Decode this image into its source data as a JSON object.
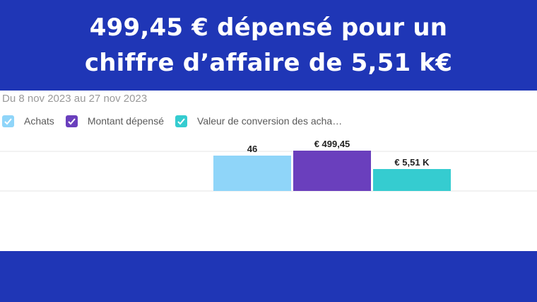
{
  "headline": {
    "line1": "499,45 € dépensé pour un",
    "line2": "chiffre d’affaire de 5,51 k€"
  },
  "date_range": "Du 8 nov 2023 au 27 nov 2023",
  "colors": {
    "banner": "#1f36b6",
    "achats": "#8fd5f9",
    "montant": "#6a3fbd",
    "valeur": "#35ccd0"
  },
  "legend": [
    {
      "label": "Achats",
      "color": "#8fd5f9",
      "icon": "checkbox-checked-icon"
    },
    {
      "label": "Montant dépensé",
      "color": "#6a3fbd",
      "icon": "checkbox-checked-icon"
    },
    {
      "label": "Valeur de conversion des acha…",
      "color": "#35ccd0",
      "icon": "checkbox-checked-icon"
    }
  ],
  "chart_data": {
    "type": "bar",
    "series": [
      {
        "name": "Achats",
        "value": 46,
        "data_label": "46",
        "color": "#8fd5f9"
      },
      {
        "name": "Montant dépensé",
        "value": 499.45,
        "data_label": "€ 499,45",
        "color": "#6a3fbd"
      },
      {
        "name": "Valeur de conversion des acha…",
        "value": 5510,
        "data_label": "€ 5,51 K",
        "color": "#35ccd0"
      }
    ],
    "grid": true,
    "legend_position": "top-left"
  }
}
